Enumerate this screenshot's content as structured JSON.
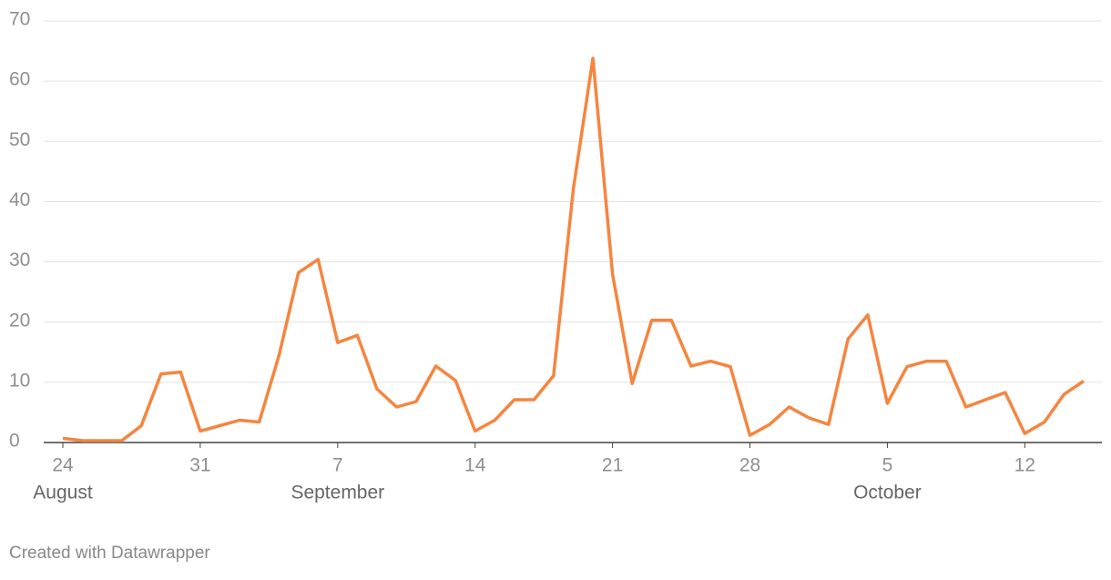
{
  "chart_data": {
    "type": "line",
    "categories": [
      "24",
      null,
      null,
      null,
      null,
      null,
      null,
      "31",
      null,
      null,
      null,
      null,
      null,
      null,
      "7",
      null,
      null,
      null,
      null,
      null,
      null,
      "14",
      null,
      null,
      null,
      null,
      null,
      null,
      "21",
      null,
      null,
      null,
      null,
      null,
      null,
      "28",
      null,
      null,
      null,
      null,
      null,
      null,
      "5",
      null,
      null,
      null,
      null,
      null,
      null,
      "12",
      null,
      null,
      null
    ],
    "category_months": [
      "August",
      null,
      null,
      null,
      null,
      null,
      null,
      null,
      null,
      null,
      null,
      null,
      null,
      null,
      "September",
      null,
      null,
      null,
      null,
      null,
      null,
      null,
      null,
      null,
      null,
      null,
      null,
      null,
      null,
      null,
      null,
      null,
      null,
      null,
      null,
      null,
      null,
      null,
      null,
      null,
      null,
      null,
      "October",
      null,
      null,
      null,
      null,
      null,
      null,
      null,
      null,
      null,
      null
    ],
    "values": [
      0.7,
      0.3,
      0.3,
      0.3,
      2.8,
      11.4,
      11.7,
      1.9,
      2.8,
      3.7,
      3.4,
      14.3,
      28.2,
      30.4,
      16.6,
      17.8,
      8.9,
      5.9,
      6.8,
      12.7,
      10.3,
      1.9,
      3.7,
      7.1,
      7.1,
      11.1,
      42,
      63.8,
      28,
      9.8,
      20.3,
      20.3,
      12.7,
      13.5,
      12.6,
      1.2,
      3.0,
      5.9,
      4.1,
      3.0,
      17.2,
      21.2,
      6.5,
      12.6,
      13.5,
      13.5,
      5.9,
      7.1,
      8.3,
      1.5,
      3.4,
      8.0,
      10.2
    ],
    "color": "#f5853f",
    "ylim": [
      0,
      70
    ],
    "yticks": [
      0,
      10,
      20,
      30,
      40,
      50,
      60,
      70
    ],
    "grid": true,
    "footer": "Created with Datawrapper"
  }
}
